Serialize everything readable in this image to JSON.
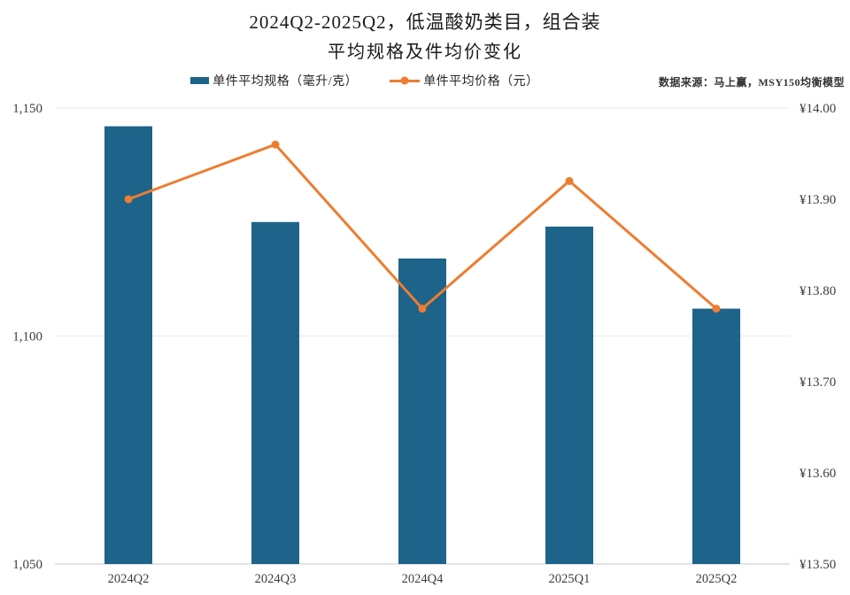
{
  "title": {
    "line1": "2024Q2-2025Q2，低温酸奶类目，组合装",
    "line2": "平均规格及件均价变化"
  },
  "legend": {
    "items": [
      {
        "label": "单件平均规格（毫升/克）",
        "swatch": "bar-swatch",
        "color": "#1e6389"
      },
      {
        "label": "单件平均价格（元）",
        "swatch": "line-with-dot-swatch",
        "color": "#ed7d31"
      }
    ],
    "position": "top-center"
  },
  "source_note": "数据来源：马上赢，MSY150均衡模型",
  "chart_data": {
    "type": "bar",
    "subtype": "combo bar + line, dual y-axis",
    "title": "2024Q2-2025Q2，低温酸奶类目，组合装 平均规格及件均价变化",
    "categories": [
      "2024Q2",
      "2024Q3",
      "2024Q4",
      "2025Q1",
      "2025Q2"
    ],
    "series": [
      {
        "name": "单件平均规格（毫升/克）",
        "type": "bar",
        "axis": "left",
        "color": "#1e6389",
        "values": [
          1146,
          1125,
          1117,
          1124,
          1106
        ]
      },
      {
        "name": "单件平均价格（元）",
        "type": "line",
        "axis": "right",
        "color": "#ed7d31",
        "values": [
          13.9,
          13.96,
          13.78,
          13.92,
          13.78
        ]
      }
    ],
    "left_axis": {
      "min": 1050,
      "max": 1150,
      "ticks": [
        {
          "value": 1050,
          "label": "1,050"
        },
        {
          "value": 1100,
          "label": "1,100"
        },
        {
          "value": 1150,
          "label": "1,150"
        }
      ]
    },
    "right_axis": {
      "min": 13.5,
      "max": 14.0,
      "ticks": [
        {
          "value": 13.5,
          "label": "¥13.50"
        },
        {
          "value": 13.6,
          "label": "¥13.60"
        },
        {
          "value": 13.7,
          "label": "¥13.70"
        },
        {
          "value": 13.8,
          "label": "¥13.80"
        },
        {
          "value": 13.9,
          "label": "¥13.90"
        },
        {
          "value": 14.0,
          "label": "¥14.00"
        }
      ]
    },
    "grid": "horizontal gridlines at left-axis ticks only",
    "legend_position": "top",
    "colors": {
      "bar": "#1e6389",
      "line": "#ed7d31",
      "gridline": "#e9e9e9",
      "axis_line": "#d5d5d5",
      "text": "#3d3d3d"
    }
  }
}
